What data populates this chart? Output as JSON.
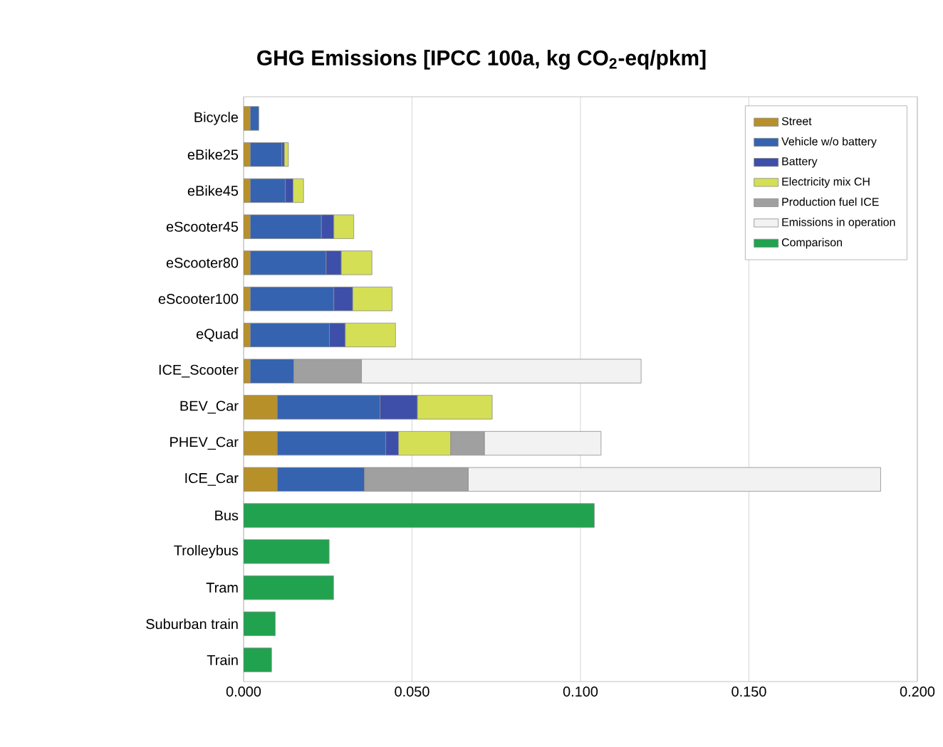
{
  "chart_data": {
    "type": "bar",
    "orientation": "horizontal",
    "stacked": true,
    "title": "GHG Emissions [IPCC 100a, kg CO$_{2}$-eq/pkm]",
    "categories": [
      "Bicycle",
      "eBike25",
      "eBike45",
      "eScooter45",
      "eScooter80",
      "eScooter100",
      "eQuad",
      "ICE_Scooter",
      "BEV_Car",
      "PHEV_Car",
      "ICE_Car",
      "Bus",
      "Trolleybus",
      "Tram",
      "Suburban train",
      "Train"
    ],
    "series": [
      {
        "name": "Street",
        "color": "#b8902a",
        "values": [
          0.002,
          0.002,
          0.002,
          0.002,
          0.002,
          0.002,
          0.002,
          0.002,
          0.01,
          0.01,
          0.01,
          null,
          null,
          null,
          null,
          null
        ]
      },
      {
        "name": "Vehicle w/o battery",
        "color": "#3563b0",
        "values": [
          0.0025,
          0.0094,
          0.0104,
          0.0211,
          0.0225,
          0.0248,
          0.0235,
          0.0129,
          0.0305,
          0.0322,
          0.0259,
          null,
          null,
          null,
          null,
          null
        ]
      },
      {
        "name": "Battery",
        "color": "#3d4fa8",
        "values": [
          null,
          0.0007,
          0.0023,
          0.0037,
          0.0045,
          0.0056,
          0.0047,
          null,
          0.0111,
          0.0038,
          null,
          null,
          null,
          null,
          null,
          null
        ]
      },
      {
        "name": "Electricity mix CH",
        "color": "#d4df55",
        "values": [
          null,
          0.0012,
          0.0031,
          0.0059,
          0.0091,
          0.0117,
          0.0149,
          null,
          0.0222,
          0.0155,
          null,
          null,
          null,
          null,
          null,
          null
        ]
      },
      {
        "name": "Production fuel ICE",
        "color": "#a0a0a0",
        "values": [
          null,
          null,
          null,
          null,
          null,
          null,
          null,
          0.0201,
          null,
          0.01,
          0.0308,
          null,
          null,
          null,
          null,
          null
        ]
      },
      {
        "name": "Emissions in operation",
        "color": "#f2f2f2",
        "values": [
          null,
          null,
          null,
          null,
          null,
          null,
          null,
          0.083,
          null,
          0.0346,
          0.1224,
          null,
          null,
          null,
          null,
          null
        ]
      },
      {
        "name": "Comparison",
        "color": "#21a24f",
        "values": [
          null,
          null,
          null,
          null,
          null,
          null,
          null,
          null,
          null,
          null,
          null,
          0.1041,
          0.0254,
          0.0267,
          0.0094,
          0.0083
        ]
      }
    ],
    "xlim": [
      0,
      0.2
    ],
    "xticks": [
      {
        "value": 0,
        "label": "0.000"
      },
      {
        "value": 0.05,
        "label": "0.050"
      },
      {
        "value": 0.1,
        "label": "0.100"
      },
      {
        "value": 0.15,
        "label": "0.150"
      },
      {
        "value": 0.2,
        "label": "0.200"
      }
    ],
    "grid": "x",
    "legend": "top right"
  }
}
